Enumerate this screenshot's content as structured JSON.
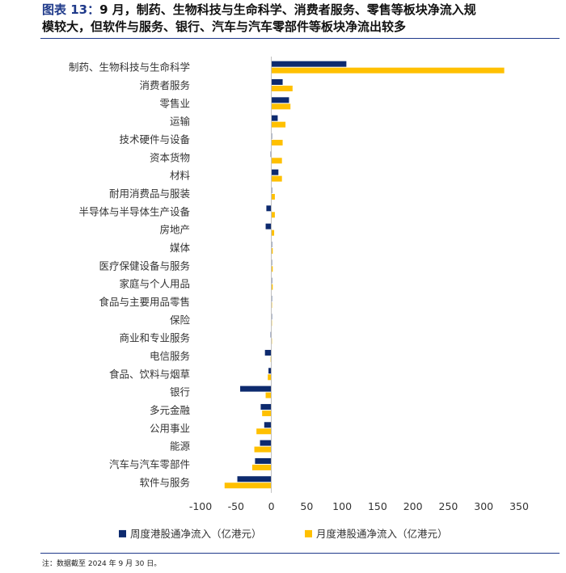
{
  "header": {
    "figure_label": "图表 13：",
    "title_line1": "9 月，制药、生物科技与生命科学、消费者服务、零售等板块净流入规",
    "title_line2": "模较大，但软件与服务、银行、汽车与汽车零部件等板块净流出较多"
  },
  "footnote": "注：数据截至 2024 年 9 月 30 日。",
  "colors": {
    "weekly": "#0d2a6e",
    "monthly": "#ffc000",
    "rule": "#1f3a8a"
  },
  "chart_data": {
    "type": "bar",
    "orientation": "horizontal",
    "title": "",
    "xlabel": "",
    "ylabel": "",
    "xlim": [
      -100,
      350
    ],
    "xticks": [
      -100,
      -50,
      0,
      50,
      100,
      150,
      200,
      250,
      300,
      350
    ],
    "grid": false,
    "legend_position": "bottom",
    "categories": [
      "制药、生物科技与生命科学",
      "消费者服务",
      "零售业",
      "运输",
      "技术硬件与设备",
      "资本货物",
      "材料",
      "耐用消费品与服装",
      "半导体与半导体生产设备",
      "房地产",
      "媒体",
      "医疗保健设备与服务",
      "家庭与个人用品",
      "食品与主要用品零售",
      "保险",
      "商业和专业服务",
      "电信服务",
      "食品、饮料与烟草",
      "银行",
      "多元金融",
      "公用事业",
      "能源",
      "汽车与汽车零部件",
      "软件与服务"
    ],
    "series": [
      {
        "name": "周度港股通净流入（亿港元）",
        "color": "#0d2a6e",
        "values": [
          106,
          16,
          25,
          9,
          0,
          -1,
          10,
          1,
          -7,
          -8,
          1,
          0,
          1,
          0,
          0,
          -1,
          -9,
          -4,
          -44,
          -15,
          -10,
          -16,
          -23,
          -48
        ]
      },
      {
        "name": "月度港股通净流入（亿港元）",
        "color": "#ffc000",
        "values": [
          329,
          30,
          27,
          20,
          16,
          15,
          15,
          5,
          5,
          4,
          2,
          2,
          2,
          1,
          0,
          0,
          -1,
          -5,
          -8,
          -13,
          -21,
          -24,
          -27,
          -66
        ]
      }
    ]
  }
}
